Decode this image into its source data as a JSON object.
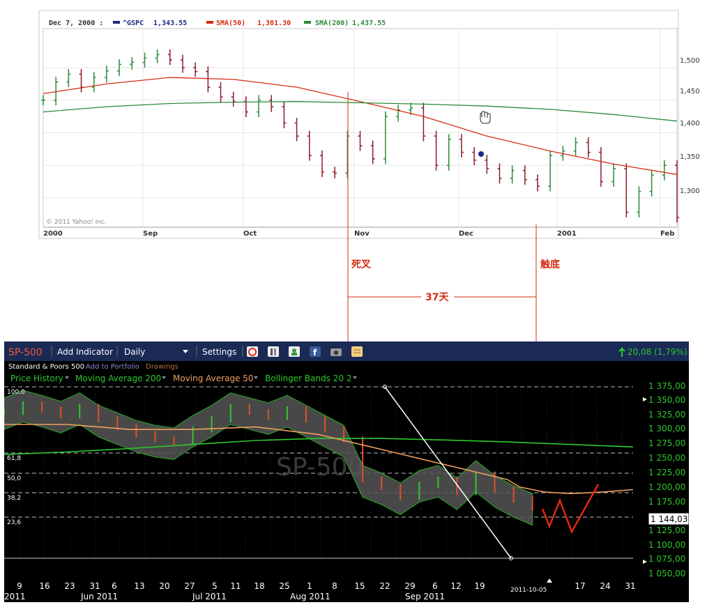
{
  "chart_data": [
    {
      "type": "line",
      "source": "© 2011 Yahoo! Inc.",
      "legend": {
        "date": "Dec 7, 2000 :",
        "items": [
          {
            "name": "^GSPC",
            "value": "1,343.55",
            "color": "#1a2a80"
          },
          {
            "name": "SMA(50)",
            "value": "1,381.30",
            "color": "#d62b10"
          },
          {
            "name": "SMA(200)",
            "value": "1,437.55",
            "color": "#2a8a3a"
          }
        ]
      },
      "x_ticks": [
        "2000",
        "Sep",
        "Oct",
        "Nov",
        "Dec",
        "2001",
        "Feb"
      ],
      "y_ticks": [
        "1,500",
        "1,450",
        "1,400",
        "1,350",
        "1,300"
      ],
      "ylim": [
        1255,
        1560
      ],
      "grid": true,
      "series": [
        {
          "name": "^GSPC",
          "color": "#2a8a3a",
          "x": [
            0,
            0.02,
            0.04,
            0.06,
            0.08,
            0.1,
            0.12,
            0.14,
            0.16,
            0.18,
            0.2,
            0.22,
            0.24,
            0.26,
            0.28,
            0.3,
            0.32,
            0.34,
            0.36,
            0.38,
            0.4,
            0.42,
            0.44,
            0.46,
            0.48,
            0.5,
            0.52,
            0.54,
            0.56,
            0.58,
            0.6,
            0.62,
            0.64,
            0.66,
            0.68,
            0.7,
            0.72,
            0.74,
            0.76,
            0.78,
            0.8,
            0.82,
            0.84,
            0.86,
            0.88,
            0.9,
            0.92,
            0.94,
            0.96,
            0.98,
            1.0
          ],
          "values": [
            1450,
            1478,
            1490,
            1470,
            1485,
            1495,
            1505,
            1508,
            1515,
            1520,
            1512,
            1500,
            1494,
            1470,
            1455,
            1448,
            1432,
            1450,
            1440,
            1415,
            1395,
            1365,
            1340,
            1338,
            1395,
            1380,
            1360,
            1425,
            1435,
            1438,
            1395,
            1350,
            1390,
            1370,
            1358,
            1345,
            1330,
            1342,
            1328,
            1318,
            1365,
            1372,
            1385,
            1370,
            1325,
            1345,
            1278,
            1310,
            1335,
            1350,
            1270
          ]
        },
        {
          "name": "SMA(50)",
          "color": "#d62b10",
          "x": [
            0,
            0.1,
            0.2,
            0.3,
            0.4,
            0.5,
            0.6,
            0.7,
            0.8,
            0.9,
            1.0
          ],
          "values": [
            1460,
            1475,
            1485,
            1482,
            1470,
            1448,
            1425,
            1395,
            1372,
            1352,
            1336
          ]
        },
        {
          "name": "SMA(200)",
          "color": "#2a8a3a",
          "x": [
            0,
            0.1,
            0.2,
            0.3,
            0.4,
            0.5,
            0.6,
            0.7,
            0.8,
            0.9,
            1.0
          ],
          "values": [
            1432,
            1440,
            1445,
            1447,
            1448,
            1446,
            1444,
            1441,
            1436,
            1428,
            1418
          ]
        }
      ]
    },
    {
      "type": "line",
      "toolbar": {
        "symbol": "SP-500",
        "add_indicator": "Add Indicator",
        "interval": "Daily",
        "settings": "Settings",
        "change": "20,08 (1,79%)"
      },
      "subtitle": "Standard & Poors 500",
      "add_to_portfolio": "Add to Portfolio",
      "drawings": "Drawings",
      "legend_items": [
        {
          "name": "Price History",
          "color": "#2ec92e"
        },
        {
          "name": "Moving Average 200",
          "color": "#2ec92e"
        },
        {
          "name": "Moving Average 50",
          "color": "#f0a060"
        },
        {
          "name": "Bollinger Bands 20 2",
          "color": "#2ec92e"
        }
      ],
      "watermark": "SP-500",
      "fib_levels": [
        "100,0",
        "61,8",
        "50,0",
        "38,2",
        "23,6"
      ],
      "y_ticks": [
        "1 375,00",
        "1 350,00",
        "1 325,00",
        "1 300,00",
        "1 275,00",
        "1 250,00",
        "1 225,00",
        "1 200,00",
        "1 175,00",
        "1 150,00",
        "1 125,00",
        "1 100,00",
        "1 075,00",
        "1 050,00"
      ],
      "last_price": "1 144,03",
      "x_days": [
        "9",
        "16",
        "23",
        "31",
        "6",
        "13",
        "20",
        "27",
        "5",
        "11",
        "18",
        "25",
        "1",
        "8",
        "15",
        "22",
        "29",
        "6",
        "12",
        "19",
        "17",
        "24",
        "31"
      ],
      "x_months": [
        "2011",
        "Jun 2011",
        "Jul 2011",
        "Aug 2011",
        "Sep 2011"
      ],
      "cursor_date": "2011-10-05",
      "ylim": [
        1043,
        1392
      ],
      "series": [
        {
          "name": "Price History",
          "color": "#2ec92e",
          "x": [
            0,
            0.03,
            0.06,
            0.09,
            0.12,
            0.15,
            0.18,
            0.21,
            0.24,
            0.27,
            0.3,
            0.33,
            0.36,
            0.39,
            0.42,
            0.45,
            0.48,
            0.51,
            0.54,
            0.57,
            0.6,
            0.63,
            0.66,
            0.69,
            0.72,
            0.75,
            0.78,
            0.81,
            0.84
          ],
          "values": [
            1335,
            1350,
            1340,
            1328,
            1345,
            1320,
            1305,
            1290,
            1280,
            1275,
            1300,
            1320,
            1345,
            1335,
            1325,
            1340,
            1320,
            1300,
            1280,
            1200,
            1185,
            1165,
            1190,
            1200,
            1175,
            1210,
            1180,
            1160,
            1144
          ]
        },
        {
          "name": "Moving Average 200",
          "color": "#2ec92e",
          "x": [
            0,
            0.1,
            0.2,
            0.3,
            0.4,
            0.5,
            0.6,
            0.7,
            0.8,
            0.9,
            1.0
          ],
          "values": [
            1250,
            1255,
            1262,
            1270,
            1278,
            1282,
            1282,
            1279,
            1275,
            1270,
            1265
          ]
        },
        {
          "name": "Moving Average 50",
          "color": "#f0a060",
          "x": [
            0,
            0.1,
            0.2,
            0.3,
            0.4,
            0.5,
            0.6,
            0.7,
            0.8,
            0.82,
            0.86,
            0.9,
            0.95,
            1.0
          ],
          "values": [
            1310,
            1310,
            1300,
            1300,
            1305,
            1290,
            1260,
            1230,
            1200,
            1185,
            1175,
            1172,
            1175,
            1180
          ]
        }
      ]
    }
  ],
  "annotations": {
    "death_cross": "死叉",
    "bottom_touch": "触底",
    "days": "37天"
  }
}
